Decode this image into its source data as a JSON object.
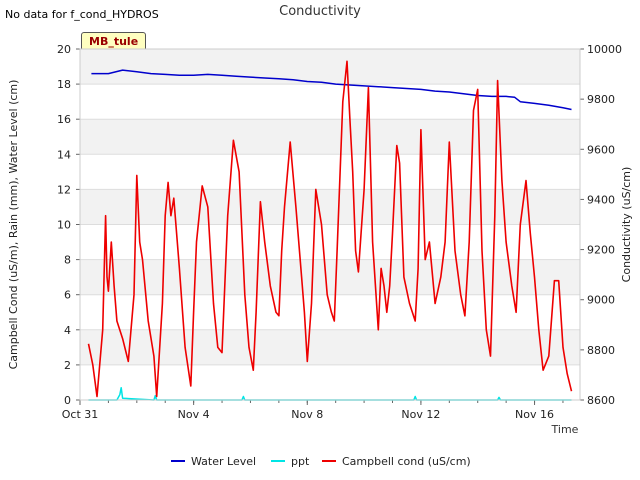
{
  "header": {
    "no_data_message": "No data for f_cond_HYDROS"
  },
  "site_badge": "MB_tule",
  "chart_data": {
    "type": "line",
    "title": "Conductivity",
    "xlabel": "Time",
    "ylabel_left": "Campbell Cond (uS/m), Rain (mm), Water Level (cm)",
    "ylabel_right": "Conductivity (uS/cm)",
    "xlim": [
      0,
      17.6
    ],
    "x_ticks": [
      {
        "x": 0,
        "label": "Oct 31"
      },
      {
        "x": 4,
        "label": "Nov 4"
      },
      {
        "x": 8,
        "label": "Nov 8"
      },
      {
        "x": 12,
        "label": "Nov 12"
      },
      {
        "x": 16,
        "label": "Nov 16"
      }
    ],
    "ylim_left": [
      0,
      20
    ],
    "yticks_left": [
      0,
      2,
      4,
      6,
      8,
      10,
      12,
      14,
      16,
      18,
      20
    ],
    "ylim_right": [
      8600,
      10000
    ],
    "yticks_right": [
      8600,
      8800,
      9000,
      9200,
      9400,
      9600,
      9800,
      10000
    ],
    "grid": true,
    "legend_position": "bottom",
    "series": [
      {
        "name": "Water Level",
        "color": "#0000cc",
        "axis": "left",
        "x": [
          0.4,
          1.0,
          1.5,
          2.0,
          2.5,
          3.0,
          3.5,
          4.0,
          4.5,
          5.0,
          5.5,
          6.0,
          6.5,
          7.0,
          7.5,
          8.0,
          8.5,
          9.0,
          9.5,
          10.0,
          10.5,
          11.0,
          11.5,
          12.0,
          12.5,
          13.0,
          13.5,
          14.0,
          14.5,
          15.0,
          15.3,
          15.5,
          16.0,
          16.5,
          17.0,
          17.3
        ],
        "y": [
          18.6,
          18.6,
          18.8,
          18.7,
          18.6,
          18.55,
          18.5,
          18.5,
          18.55,
          18.5,
          18.45,
          18.4,
          18.35,
          18.3,
          18.25,
          18.15,
          18.1,
          18.0,
          17.95,
          17.9,
          17.85,
          17.8,
          17.75,
          17.7,
          17.6,
          17.55,
          17.45,
          17.35,
          17.3,
          17.3,
          17.25,
          17.0,
          16.9,
          16.8,
          16.65,
          16.55
        ]
      },
      {
        "name": "ppt",
        "color": "#00e5e5",
        "axis": "left",
        "x": [
          0.3,
          1.3,
          1.4,
          1.45,
          1.5,
          2.6,
          2.65,
          2.7,
          5.7,
          5.75,
          5.8,
          11.75,
          11.8,
          11.85,
          14.7,
          14.75,
          14.8,
          17.3
        ],
        "y": [
          0,
          0,
          0.3,
          0.7,
          0.1,
          0,
          0.25,
          0,
          0,
          0.2,
          0,
          0,
          0.2,
          0,
          0,
          0.15,
          0,
          0
        ]
      },
      {
        "name": "Campbell cond (uS/cm)",
        "color": "#ee0000",
        "axis": "left",
        "x": [
          0.3,
          0.45,
          0.6,
          0.8,
          0.9,
          0.95,
          1.0,
          1.1,
          1.2,
          1.3,
          1.5,
          1.7,
          1.9,
          2.0,
          2.1,
          2.2,
          2.4,
          2.6,
          2.7,
          2.9,
          3.0,
          3.1,
          3.2,
          3.3,
          3.5,
          3.7,
          3.9,
          4.0,
          4.1,
          4.3,
          4.5,
          4.7,
          4.85,
          5.0,
          5.2,
          5.4,
          5.6,
          5.8,
          5.95,
          6.1,
          6.2,
          6.35,
          6.5,
          6.7,
          6.9,
          7.0,
          7.1,
          7.2,
          7.4,
          7.6,
          7.8,
          7.9,
          8.0,
          8.15,
          8.3,
          8.5,
          8.7,
          8.85,
          8.95,
          9.05,
          9.25,
          9.4,
          9.5,
          9.6,
          9.7,
          9.8,
          10.0,
          10.15,
          10.3,
          10.5,
          10.6,
          10.7,
          10.8,
          10.9,
          11.0,
          11.15,
          11.25,
          11.4,
          11.6,
          11.8,
          11.9,
          12.0,
          12.15,
          12.3,
          12.5,
          12.7,
          12.85,
          13.0,
          13.2,
          13.4,
          13.55,
          13.7,
          13.85,
          14.0,
          14.15,
          14.3,
          14.45,
          14.6,
          14.7,
          14.85,
          15.0,
          15.2,
          15.35,
          15.5,
          15.7,
          15.85,
          16.0,
          16.15,
          16.3,
          16.5,
          16.7,
          16.85,
          17.0,
          17.15,
          17.3
        ],
        "y": [
          3.2,
          2.0,
          0.2,
          4.0,
          10.5,
          7.0,
          6.2,
          9.0,
          6.5,
          4.5,
          3.5,
          2.2,
          6.0,
          12.8,
          9.0,
          8.0,
          4.5,
          2.5,
          0.2,
          5.5,
          10.5,
          12.4,
          10.5,
          11.5,
          7.5,
          3.0,
          0.8,
          5.0,
          9.0,
          12.2,
          11.0,
          5.5,
          3.0,
          2.7,
          10.5,
          14.8,
          13.0,
          6.0,
          3.0,
          1.7,
          5.0,
          11.3,
          9.0,
          6.5,
          5.0,
          4.8,
          8.5,
          11.0,
          14.7,
          11.0,
          7.0,
          5.0,
          2.2,
          5.5,
          12.0,
          10.0,
          6.0,
          5.0,
          4.5,
          8.5,
          17.0,
          19.3,
          16.0,
          13.0,
          8.5,
          7.3,
          12.0,
          17.8,
          9.0,
          4.0,
          7.5,
          6.5,
          5.0,
          6.5,
          9.5,
          14.5,
          13.5,
          7.0,
          5.5,
          4.5,
          7.5,
          15.4,
          8.0,
          9.0,
          5.5,
          7.0,
          9.0,
          14.7,
          8.5,
          6.0,
          4.8,
          9.0,
          16.5,
          17.7,
          8.5,
          4.0,
          2.5,
          10.5,
          18.2,
          12.5,
          9.0,
          6.5,
          5.0,
          10.0,
          12.5,
          9.5,
          7.0,
          4.0,
          1.7,
          2.5,
          6.8,
          6.8,
          3.0,
          1.5,
          0.5
        ]
      }
    ]
  }
}
